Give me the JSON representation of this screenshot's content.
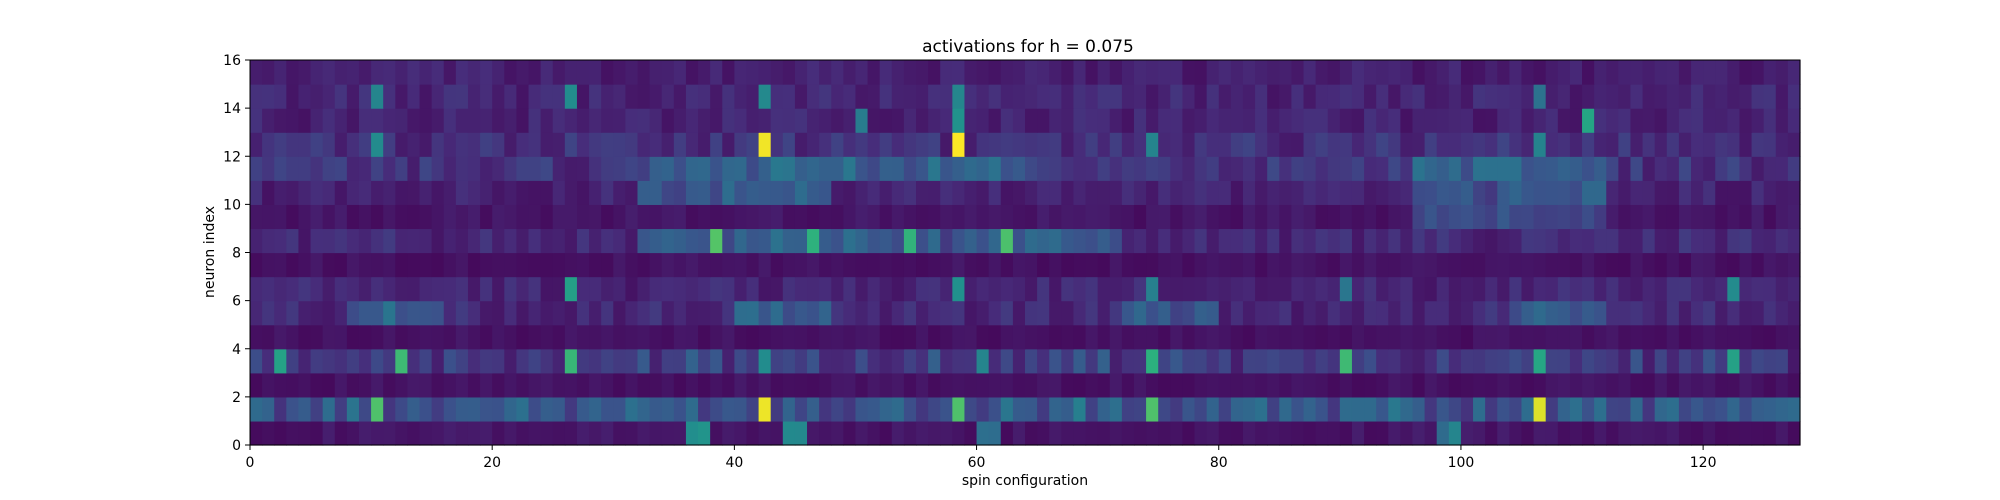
{
  "chart_data": {
    "type": "heatmap",
    "title": "activations for h = 0.075",
    "xlabel": "spin configuration",
    "ylabel": "neuron index",
    "xlim": [
      0,
      128
    ],
    "ylim": [
      0,
      16
    ],
    "xticks": [
      0,
      20,
      40,
      60,
      80,
      100,
      120
    ],
    "yticks": [
      0,
      2,
      4,
      6,
      8,
      10,
      12,
      14,
      16
    ],
    "colormap": "viridis",
    "grid": false,
    "n_columns": 128,
    "n_rows": 16,
    "row_profiles": [
      {
        "neuron": 0,
        "base": 0.06,
        "strong_columns": [
          36,
          37,
          44,
          45,
          60,
          61,
          98,
          99
        ]
      },
      {
        "neuron": 1,
        "base": 0.22,
        "strong_columns": [
          10,
          42,
          58,
          74,
          106
        ],
        "peak_columns": [
          42,
          106
        ]
      },
      {
        "neuron": 2,
        "base": 0.05,
        "strong_columns": []
      },
      {
        "neuron": 3,
        "base": 0.14,
        "strong_columns": [
          2,
          12,
          26,
          42,
          60,
          74,
          90,
          106,
          122
        ]
      },
      {
        "neuron": 4,
        "base": 0.05,
        "strong_columns": []
      },
      {
        "neuron": 5,
        "base": 0.12,
        "band_columns": [
          [
            8,
            16
          ],
          [
            40,
            48
          ],
          [
            72,
            80
          ],
          [
            104,
            112
          ]
        ]
      },
      {
        "neuron": 6,
        "base": 0.11,
        "strong_columns": [
          26,
          58,
          74,
          90,
          122
        ]
      },
      {
        "neuron": 7,
        "base": 0.05,
        "strong_columns": []
      },
      {
        "neuron": 8,
        "base": 0.12,
        "band_columns": [
          [
            32,
            48
          ],
          [
            48,
            64
          ],
          [
            64,
            72
          ]
        ],
        "strong_columns": [
          38,
          46,
          54,
          62
        ]
      },
      {
        "neuron": 9,
        "base": 0.06,
        "band_columns": [
          [
            96,
            112
          ]
        ]
      },
      {
        "neuron": 10,
        "base": 0.1,
        "band_columns": [
          [
            32,
            48
          ],
          [
            96,
            112
          ]
        ]
      },
      {
        "neuron": 11,
        "base": 0.15,
        "band_columns": [
          [
            32,
            48
          ],
          [
            48,
            64
          ],
          [
            96,
            112
          ]
        ]
      },
      {
        "neuron": 12,
        "base": 0.14,
        "strong_columns": [
          10,
          42,
          58,
          74,
          106
        ],
        "peak_columns": [
          42,
          58
        ]
      },
      {
        "neuron": 13,
        "base": 0.1,
        "strong_columns": [
          50,
          58,
          110
        ]
      },
      {
        "neuron": 14,
        "base": 0.11,
        "strong_columns": [
          10,
          26,
          42,
          58,
          106
        ]
      },
      {
        "neuron": 15,
        "base": 0.09,
        "strong_columns": []
      }
    ]
  }
}
